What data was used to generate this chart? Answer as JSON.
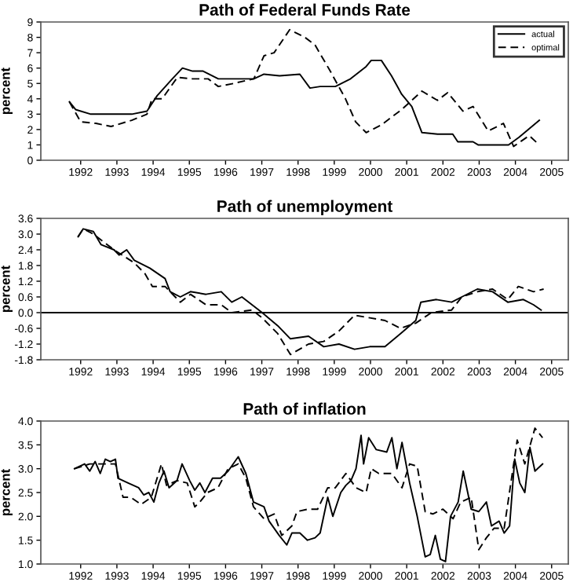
{
  "chart_data": [
    {
      "type": "line",
      "title": "Path of Federal Funds Rate",
      "ylabel": "percent",
      "xlim": [
        1990.9,
        2005.46
      ],
      "ylim": [
        0,
        9
      ],
      "yticks": [
        0,
        1,
        2,
        3,
        4,
        5,
        6,
        7,
        8,
        9
      ],
      "xticks": [
        1992,
        1993,
        1994,
        1995,
        1996,
        1997,
        1998,
        1999,
        2000,
        2001,
        2002,
        2003,
        2004,
        2005
      ],
      "legend": "top right",
      "grid": false,
      "series": [
        {
          "name": "actual",
          "color": "#000000",
          "line_style": "solid",
          "x": [
            1991.69,
            1991.86,
            1992.28,
            1992.98,
            1993.41,
            1993.83,
            1994.11,
            1994.53,
            1994.81,
            1995.09,
            1995.38,
            1995.8,
            1996.22,
            1996.78,
            1997.06,
            1997.49,
            1998.05,
            1998.33,
            1998.61,
            1999.03,
            1999.45,
            1999.88,
            2000.02,
            2000.3,
            2000.58,
            2000.86,
            2001.14,
            2001.42,
            2001.85,
            2002.27,
            2002.41,
            2002.83,
            2002.97,
            2003.81,
            2004.1,
            2004.66
          ],
          "values": [
            3.8,
            3.3,
            3.0,
            3.0,
            3.0,
            3.2,
            4.2,
            5.3,
            6.0,
            5.8,
            5.8,
            5.3,
            5.3,
            5.3,
            5.6,
            5.5,
            5.6,
            4.7,
            4.8,
            4.8,
            5.3,
            6.1,
            6.5,
            6.5,
            5.5,
            4.3,
            3.5,
            1.8,
            1.7,
            1.7,
            1.2,
            1.2,
            1.0,
            1.0,
            1.5,
            2.6
          ]
        },
        {
          "name": "optimal",
          "color": "#000000",
          "line_style": "dashed",
          "x": [
            1991.69,
            1992.0,
            1992.42,
            1992.84,
            1993.41,
            1993.83,
            1993.97,
            1994.25,
            1994.67,
            1995.09,
            1995.52,
            1995.8,
            1996.22,
            1996.78,
            1997.06,
            1997.34,
            1997.77,
            1998.19,
            1998.47,
            1998.89,
            1999.31,
            1999.59,
            1999.88,
            2000.3,
            2000.86,
            2001.42,
            2001.85,
            2002.13,
            2002.55,
            2002.83,
            2003.25,
            2003.67,
            2003.95,
            2004.38,
            2004.66
          ],
          "values": [
            3.8,
            2.5,
            2.4,
            2.2,
            2.6,
            3.0,
            4.0,
            4.0,
            5.4,
            5.3,
            5.3,
            4.8,
            5.0,
            5.3,
            6.8,
            7.0,
            8.5,
            8.0,
            7.5,
            5.8,
            4.0,
            2.5,
            1.8,
            2.3,
            3.3,
            4.5,
            3.9,
            4.4,
            3.2,
            3.5,
            1.9,
            2.4,
            0.9,
            1.6,
            1.0
          ]
        }
      ]
    },
    {
      "type": "line",
      "title": "Path of unemployment",
      "ylabel": "percent",
      "xlim": [
        1990.9,
        2005.46
      ],
      "ylim": [
        -1.8,
        3.6
      ],
      "yticks": [
        -1.8,
        -1.2,
        -0.6,
        {
          "value": 0,
          "label": "0.0"
        },
        0.6,
        1.2,
        1.8,
        2.4,
        {
          "value": 3,
          "label": "3.0"
        },
        3.6
      ],
      "xticks": [
        1992,
        1993,
        1994,
        1995,
        1996,
        1997,
        1998,
        1999,
        2000,
        2001,
        2002,
        2003,
        2004,
        2005
      ],
      "grid": false,
      "ref_lines": [
        {
          "axis": "y",
          "value": 0,
          "label": null,
          "color": "#000000",
          "line_style": "solid"
        }
      ],
      "series": [
        {
          "color": "#000000",
          "line_style": "solid",
          "x": [
            1991.93,
            1992.07,
            1992.35,
            1992.56,
            1992.92,
            1993.06,
            1993.27,
            1993.48,
            1993.91,
            1994.33,
            1994.47,
            1994.75,
            1995.03,
            1995.46,
            1995.88,
            1996.17,
            1996.45,
            1996.73,
            1997.01,
            1997.44,
            1997.79,
            1998.29,
            1998.71,
            1999.13,
            1999.56,
            1999.98,
            2000.4,
            2000.83,
            2001.25,
            2001.39,
            2001.82,
            2002.24,
            2002.52,
            2002.95,
            2003.37,
            2003.79,
            2004.22,
            2004.5,
            2004.71
          ],
          "values": [
            2.9,
            3.2,
            3.1,
            2.6,
            2.4,
            2.2,
            2.4,
            2.0,
            1.7,
            1.3,
            0.8,
            0.6,
            0.8,
            0.7,
            0.8,
            0.4,
            0.6,
            0.3,
            0.0,
            -0.5,
            -1.0,
            -0.9,
            -1.3,
            -1.2,
            -1.4,
            -1.3,
            -1.3,
            -0.8,
            -0.3,
            0.4,
            0.5,
            0.4,
            0.6,
            0.9,
            0.8,
            0.4,
            0.5,
            0.3,
            0.1
          ]
        },
        {
          "color": "#000000",
          "line_style": "dashed",
          "x": [
            1991.93,
            1992.07,
            1992.35,
            1992.92,
            1993.48,
            1993.77,
            1993.98,
            1994.33,
            1994.75,
            1995.03,
            1995.46,
            1995.88,
            1996.17,
            1996.73,
            1997.01,
            1997.44,
            1997.79,
            1998.29,
            1998.71,
            1999.13,
            1999.56,
            1999.98,
            2000.4,
            2000.83,
            2001.25,
            2001.68,
            2002.24,
            2002.52,
            2002.95,
            2003.37,
            2003.79,
            2004.08,
            2004.5,
            2004.78
          ],
          "values": [
            2.9,
            3.2,
            3.0,
            2.4,
            1.9,
            1.5,
            1.0,
            1.0,
            0.4,
            0.7,
            0.3,
            0.3,
            0.0,
            0.1,
            -0.2,
            -0.8,
            -1.6,
            -1.2,
            -1.1,
            -0.7,
            -0.1,
            -0.2,
            -0.3,
            -0.6,
            -0.4,
            0.0,
            0.1,
            0.6,
            0.8,
            0.9,
            0.5,
            1.0,
            0.8,
            0.9
          ]
        }
      ]
    },
    {
      "type": "line",
      "title": "Path of inflation",
      "ylabel": "percent",
      "xlim": [
        1990.9,
        2005.46
      ],
      "ylim": [
        1.0,
        4.0
      ],
      "yticks": [
        {
          "value": 1,
          "label": "1.0"
        },
        1.5,
        {
          "value": 2,
          "label": "2.0"
        },
        2.5,
        {
          "value": 3,
          "label": "3.0"
        },
        3.5,
        {
          "value": 4,
          "label": "4.0"
        }
      ],
      "xticks": [
        1992,
        1993,
        1994,
        1995,
        1996,
        1997,
        1998,
        1999,
        2000,
        2001,
        2002,
        2003,
        2004,
        2005
      ],
      "grid": false,
      "series": [
        {
          "color": "#000000",
          "line_style": "solid",
          "x": [
            1991.83,
            1992.11,
            1992.25,
            1992.4,
            1992.54,
            1992.68,
            1992.82,
            1992.96,
            1993.03,
            1993.31,
            1993.6,
            1993.74,
            1993.88,
            1994.02,
            1994.16,
            1994.3,
            1994.44,
            1994.66,
            1994.8,
            1995.01,
            1995.15,
            1995.29,
            1995.43,
            1995.64,
            1995.86,
            1996.07,
            1996.35,
            1996.56,
            1996.77,
            1997.06,
            1997.2,
            1997.48,
            1997.69,
            1997.83,
            1998.05,
            1998.26,
            1998.47,
            1998.61,
            1998.82,
            1998.96,
            1999.18,
            1999.32,
            1999.46,
            1999.6,
            1999.74,
            1999.81,
            1999.95,
            2000.16,
            2000.45,
            2000.59,
            2000.73,
            2000.87,
            2001.08,
            2001.29,
            2001.51,
            2001.65,
            2001.79,
            2001.93,
            2002.07,
            2002.21,
            2002.42,
            2002.56,
            2002.78,
            2002.99,
            2003.2,
            2003.34,
            2003.55,
            2003.69,
            2003.84,
            2003.98,
            2004.12,
            2004.26,
            2004.4,
            2004.54,
            2004.75
          ],
          "values": [
            3.0,
            3.1,
            2.95,
            3.15,
            2.9,
            3.2,
            3.15,
            3.2,
            2.8,
            2.7,
            2.6,
            2.45,
            2.5,
            2.3,
            2.7,
            2.95,
            2.6,
            2.75,
            3.1,
            2.75,
            2.55,
            2.7,
            2.5,
            2.8,
            2.8,
            2.95,
            3.25,
            2.9,
            2.3,
            2.2,
            1.9,
            1.6,
            1.4,
            1.65,
            1.65,
            1.5,
            1.55,
            1.65,
            2.4,
            2.0,
            2.5,
            2.65,
            2.75,
            3.0,
            3.7,
            3.1,
            3.65,
            3.4,
            3.35,
            3.65,
            3.0,
            3.55,
            2.7,
            2.0,
            1.15,
            1.2,
            1.6,
            1.1,
            1.05,
            2.0,
            2.3,
            2.95,
            2.15,
            2.1,
            2.3,
            1.8,
            1.9,
            1.65,
            1.8,
            3.2,
            2.7,
            2.5,
            3.45,
            2.95,
            3.1
          ]
        },
        {
          "color": "#000000",
          "line_style": "dashed",
          "x": [
            1991.83,
            1992.25,
            1992.68,
            1992.96,
            1993.17,
            1993.38,
            1993.67,
            1993.95,
            1994.23,
            1994.37,
            1994.66,
            1994.94,
            1995.15,
            1995.29,
            1995.5,
            1995.79,
            1996.07,
            1996.35,
            1996.56,
            1996.77,
            1997.06,
            1997.34,
            1997.55,
            1997.83,
            1997.97,
            1998.26,
            1998.54,
            1998.82,
            1999.03,
            1999.32,
            1999.6,
            1999.88,
            2000.02,
            2000.23,
            2000.59,
            2000.87,
            2001.08,
            2001.29,
            2001.51,
            2001.72,
            2002.0,
            2002.28,
            2002.49,
            2002.78,
            2002.99,
            2003.2,
            2003.41,
            2003.69,
            2004.05,
            2004.26,
            2004.54,
            2004.75
          ],
          "values": [
            3.0,
            3.1,
            3.1,
            3.1,
            2.4,
            2.4,
            2.25,
            2.4,
            3.1,
            2.65,
            2.75,
            2.7,
            2.2,
            2.3,
            2.5,
            2.6,
            3.0,
            3.1,
            2.8,
            2.2,
            1.95,
            2.05,
            1.6,
            1.8,
            2.1,
            2.15,
            2.15,
            2.6,
            2.6,
            2.9,
            2.6,
            2.5,
            3.0,
            2.9,
            2.9,
            2.6,
            3.1,
            3.05,
            2.1,
            2.05,
            2.15,
            1.95,
            2.3,
            2.4,
            1.3,
            1.55,
            1.75,
            1.75,
            3.6,
            3.1,
            3.85,
            3.65
          ]
        }
      ]
    }
  ]
}
